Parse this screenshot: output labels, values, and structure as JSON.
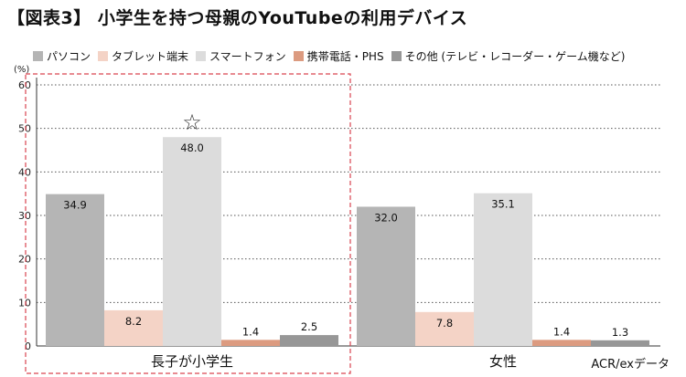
{
  "title": "【図表3】 小学生を持つ母親のYouTubeの利用デバイス",
  "source": "ACR/exデータ",
  "colors": {
    "pc": "#b5b5b5",
    "tablet": "#f4d3c6",
    "smartphone": "#dcdcdc",
    "mobile": "#dc9b80",
    "other": "#979797",
    "highlight": "#d9444f"
  },
  "chart_data": {
    "type": "bar",
    "ylabel": "(%)",
    "ylim": [
      0,
      60
    ],
    "yticks": [
      0,
      10,
      20,
      30,
      40,
      50,
      60
    ],
    "grid": true,
    "legend_position": "top",
    "categories": [
      "長子が小学生",
      "女性"
    ],
    "series": [
      {
        "name": "パソコン",
        "values": [
          34.9,
          32.0
        ],
        "labels": [
          "34.9",
          "32.0"
        ]
      },
      {
        "name": "タブレット端末",
        "values": [
          8.2,
          7.8
        ],
        "labels": [
          "8.2",
          "7.8"
        ]
      },
      {
        "name": "スマートフォン",
        "values": [
          48.0,
          35.1
        ],
        "labels": [
          "48.0",
          "35.1"
        ]
      },
      {
        "name": "携帯電話・PHS",
        "values": [
          1.4,
          1.4
        ],
        "labels": [
          "1.4",
          "1.4"
        ]
      },
      {
        "name": "その他 (テレビ・レコーダー・ゲーム機など)",
        "values": [
          2.5,
          1.3
        ],
        "labels": [
          "2.5",
          "1.3"
        ]
      }
    ],
    "annotation": "☆"
  }
}
